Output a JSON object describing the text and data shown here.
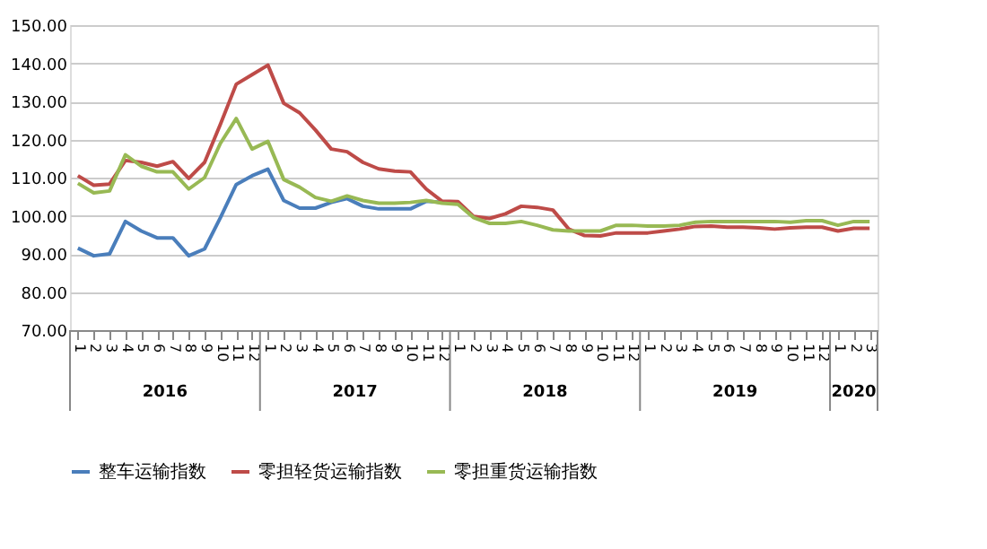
{
  "chart_data": {
    "type": "line",
    "categories": [
      "1",
      "2",
      "3",
      "4",
      "5",
      "6",
      "7",
      "8",
      "9",
      "10",
      "11",
      "12",
      "1",
      "2",
      "3",
      "4",
      "5",
      "6",
      "7",
      "8",
      "9",
      "10",
      "11",
      "12",
      "1",
      "2",
      "3",
      "4",
      "5",
      "6",
      "7",
      "8",
      "9",
      "10",
      "11",
      "12",
      "1",
      "2",
      "3",
      "4",
      "5",
      "6",
      "7",
      "8",
      "9",
      "10",
      "11",
      "12",
      "1",
      "2",
      "3"
    ],
    "series": [
      {
        "name": "整车运输指数",
        "color": "#4a7ebb",
        "values": [
          91.5,
          89.5,
          90,
          98.5,
          96,
          94.2,
          94.2,
          89.5,
          91.3,
          99.5,
          108.2,
          110.5,
          112.2,
          104,
          102,
          102,
          103.5,
          104.5,
          102.5,
          101.8,
          101.8,
          101.8,
          103.8,
          103.5,
          null,
          null,
          null,
          null,
          null,
          null,
          null,
          null,
          null,
          null,
          null,
          null,
          null,
          null,
          null,
          null,
          null,
          null,
          null,
          null,
          null,
          null,
          null,
          null,
          null,
          null,
          null
        ]
      },
      {
        "name": "零担轻货运输指数",
        "color": "#be4b48",
        "values": [
          110.5,
          108,
          108.3,
          114.5,
          114,
          113,
          114.2,
          109.8,
          114,
          124,
          134.5,
          137,
          139.5,
          129.5,
          127,
          122.5,
          117.5,
          116.8,
          114,
          112.3,
          111.7,
          111.5,
          107,
          103.8,
          103.7,
          99.8,
          99.3,
          100.5,
          102.5,
          102.2,
          101.5,
          96.5,
          94.8,
          94.7,
          95.5,
          95.5,
          95.5,
          96,
          96.5,
          97.2,
          97.3,
          97,
          97,
          96.8,
          96.5,
          96.8,
          97,
          97,
          96,
          96.7,
          96.7
        ]
      },
      {
        "name": "零担重货运输指数",
        "color": "#98b954",
        "values": [
          108.5,
          106,
          106.5,
          116,
          113,
          111.5,
          111.5,
          107,
          110,
          119,
          125.5,
          117.5,
          119.5,
          109.5,
          107.5,
          104.8,
          103.8,
          105.2,
          104,
          103.3,
          103.3,
          103.5,
          104,
          103.3,
          103,
          99.5,
          98,
          98,
          98.5,
          97.5,
          96.3,
          96,
          96,
          96,
          97.5,
          97.5,
          97.3,
          97.3,
          97.5,
          98.3,
          98.5,
          98.5,
          98.5,
          98.5,
          98.5,
          98.3,
          98.7,
          98.7,
          97.5,
          98.5,
          98.5
        ]
      }
    ],
    "ylim": [
      70,
      150
    ],
    "yticks": [
      {
        "value": 70,
        "label": "70.00"
      },
      {
        "value": 80,
        "label": "80.00"
      },
      {
        "value": 90,
        "label": "90.00"
      },
      {
        "value": 100,
        "label": "100.00"
      },
      {
        "value": 110,
        "label": "110.00"
      },
      {
        "value": 120,
        "label": "120.00"
      },
      {
        "value": 130,
        "label": "130.00"
      },
      {
        "value": 140,
        "label": "140.00"
      },
      {
        "value": 150,
        "label": "150.00"
      }
    ],
    "annotations": [
      "2016",
      "2017",
      "2018",
      "2019",
      "2020"
    ],
    "grid": "y",
    "legend": "bottom",
    "marker": "none",
    "line_style": "solid"
  }
}
